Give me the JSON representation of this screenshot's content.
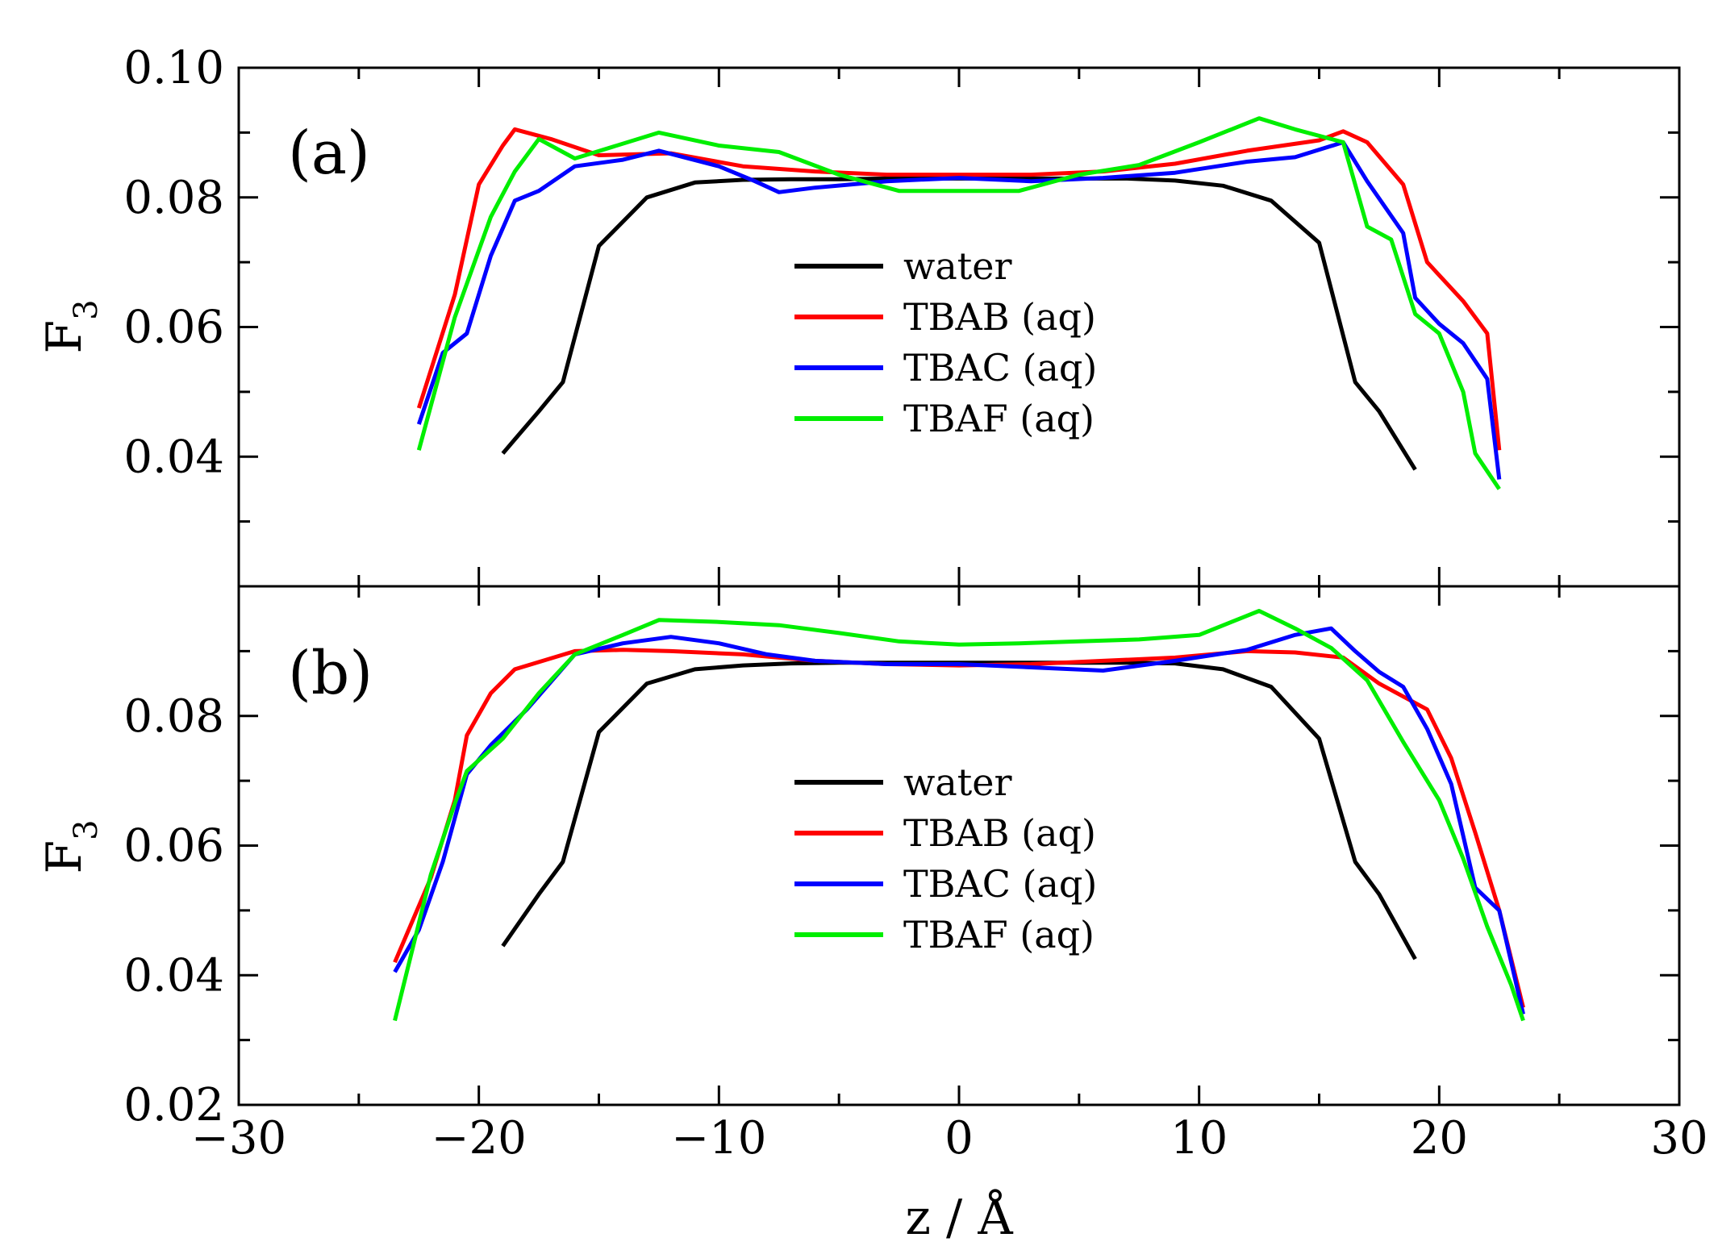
{
  "chart_data": [
    {
      "type": "line",
      "panel_label": "(a)",
      "ylabel": "F",
      "ylabel_sub": "3",
      "xlim": [
        -30,
        30
      ],
      "ylim": [
        0.02,
        0.1
      ],
      "y_ticks": [
        0.04,
        0.06,
        0.08,
        0.1
      ],
      "y_tick_labels": [
        "0.04",
        "0.06",
        "0.08",
        "0.10"
      ],
      "legend_position": "center",
      "series": [
        {
          "name": "water",
          "color": "#000000",
          "x": [
            -19,
            -17.5,
            -16.5,
            -15,
            -13,
            -11,
            -9,
            -7,
            -5,
            -3,
            -1,
            1,
            3,
            5,
            7,
            9,
            11,
            13,
            15,
            16.5,
            17.5,
            19
          ],
          "y": [
            0.0405,
            0.047,
            0.0515,
            0.0725,
            0.08,
            0.0823,
            0.0827,
            0.0828,
            0.0828,
            0.0829,
            0.0829,
            0.0829,
            0.0829,
            0.0829,
            0.0829,
            0.0826,
            0.0818,
            0.0795,
            0.073,
            0.0515,
            0.047,
            0.038
          ]
        },
        {
          "name": "TBAB (aq)",
          "color": "#ff0000",
          "x": [
            -22.5,
            -21,
            -20,
            -19,
            -18.5,
            -17,
            -15,
            -12,
            -9,
            -6,
            -3,
            0,
            3,
            6,
            9,
            12,
            15,
            16,
            17,
            18.5,
            19.5,
            21,
            22,
            22.5
          ],
          "y": [
            0.0475,
            0.065,
            0.082,
            0.088,
            0.0905,
            0.089,
            0.0865,
            0.0868,
            0.0848,
            0.084,
            0.0835,
            0.0835,
            0.0835,
            0.084,
            0.0852,
            0.0872,
            0.0888,
            0.0902,
            0.0885,
            0.082,
            0.07,
            0.064,
            0.059,
            0.041
          ]
        },
        {
          "name": "TBAC (aq)",
          "color": "#0000ff",
          "x": [
            -22.5,
            -21.5,
            -20.5,
            -19.5,
            -18.5,
            -17.5,
            -16,
            -14,
            -12.5,
            -10,
            -8.5,
            -7.5,
            -6,
            -3,
            0,
            3,
            6,
            9,
            12,
            14,
            16,
            17,
            18.5,
            19,
            20,
            21,
            22,
            22.5
          ],
          "y": [
            0.045,
            0.056,
            0.059,
            0.071,
            0.0795,
            0.081,
            0.0848,
            0.0858,
            0.0872,
            0.0848,
            0.0825,
            0.0808,
            0.0815,
            0.0825,
            0.083,
            0.0825,
            0.083,
            0.0838,
            0.0855,
            0.0862,
            0.0885,
            0.0825,
            0.0745,
            0.0645,
            0.0605,
            0.0575,
            0.052,
            0.0365
          ]
        },
        {
          "name": "TBAF (aq)",
          "color": "#00ee00",
          "x": [
            -22.5,
            -21,
            -19.5,
            -18.5,
            -17.5,
            -16,
            -12.5,
            -10,
            -7.5,
            -5,
            -2.5,
            0,
            2.5,
            5,
            7.5,
            10,
            12.5,
            14,
            16,
            17,
            18,
            19,
            20,
            21,
            21.5,
            22.5
          ],
          "y": [
            0.041,
            0.0615,
            0.077,
            0.084,
            0.089,
            0.086,
            0.09,
            0.088,
            0.087,
            0.0835,
            0.081,
            0.081,
            0.081,
            0.0835,
            0.085,
            0.0885,
            0.0922,
            0.0905,
            0.0885,
            0.0755,
            0.0735,
            0.062,
            0.059,
            0.05,
            0.0405,
            0.035
          ]
        }
      ]
    },
    {
      "type": "line",
      "panel_label": "(b)",
      "xlabel": "z / Å",
      "ylabel": "F",
      "ylabel_sub": "3",
      "xlim": [
        -30,
        30
      ],
      "ylim": [
        0.02,
        0.1
      ],
      "x_ticks": [
        -30,
        -20,
        -10,
        0,
        10,
        20,
        30
      ],
      "x_tick_labels": [
        "−30",
        "−20",
        "−10",
        "0",
        "10",
        "20",
        "30"
      ],
      "y_ticks": [
        0.02,
        0.04,
        0.06,
        0.08
      ],
      "y_tick_labels": [
        "0.02",
        "0.04",
        "0.06",
        "0.08"
      ],
      "legend_position": "center",
      "series": [
        {
          "name": "water",
          "color": "#000000",
          "x": [
            -19,
            -17.5,
            -16.5,
            -15,
            -13,
            -11,
            -9,
            -7,
            -5,
            -3,
            -1,
            1,
            3,
            5,
            7,
            9,
            11,
            13,
            15,
            16.5,
            17.5,
            19
          ],
          "y": [
            0.0445,
            0.0525,
            0.0575,
            0.0775,
            0.085,
            0.0872,
            0.0878,
            0.0881,
            0.0882,
            0.0882,
            0.0882,
            0.0882,
            0.0882,
            0.0882,
            0.0882,
            0.0881,
            0.0872,
            0.0845,
            0.0765,
            0.0575,
            0.0525,
            0.0425
          ]
        },
        {
          "name": "TBAB (aq)",
          "color": "#ff0000",
          "x": [
            -23.5,
            -22,
            -21,
            -20.5,
            -19.5,
            -18.5,
            -16,
            -14,
            -12,
            -9,
            -6,
            -3,
            0,
            3,
            6,
            9,
            12,
            14,
            16,
            17.5,
            19.5,
            20.5,
            21.5,
            22.5,
            23.5
          ],
          "y": [
            0.042,
            0.055,
            0.067,
            0.077,
            0.0835,
            0.0872,
            0.09,
            0.0902,
            0.09,
            0.0895,
            0.0885,
            0.088,
            0.0878,
            0.088,
            0.0885,
            0.089,
            0.09,
            0.0898,
            0.089,
            0.085,
            0.081,
            0.0735,
            0.062,
            0.05,
            0.035
          ]
        },
        {
          "name": "TBAC (aq)",
          "color": "#0000ff",
          "x": [
            -23.5,
            -22.5,
            -21.5,
            -20.5,
            -19.5,
            -18,
            -16,
            -14,
            -12,
            -10,
            -8,
            -6,
            -3,
            0,
            3,
            6,
            9,
            12,
            14,
            15.5,
            16.5,
            17.5,
            18.5,
            19.5,
            20.5,
            21.5,
            22.5,
            23.5
          ],
          "y": [
            0.0405,
            0.047,
            0.0575,
            0.071,
            0.0755,
            0.081,
            0.0895,
            0.0912,
            0.0922,
            0.0912,
            0.0895,
            0.0885,
            0.088,
            0.088,
            0.0875,
            0.087,
            0.0885,
            0.0902,
            0.0925,
            0.0935,
            0.09,
            0.0868,
            0.0845,
            0.078,
            0.0695,
            0.0535,
            0.05,
            0.034
          ]
        },
        {
          "name": "TBAF (aq)",
          "color": "#00ee00",
          "x": [
            -23.5,
            -22,
            -21,
            -20.5,
            -19,
            -17.5,
            -16,
            -14,
            -12.5,
            -10,
            -7.5,
            -5,
            -2.5,
            0,
            2.5,
            5,
            7.5,
            10,
            12.5,
            14,
            15.5,
            17,
            18.5,
            20,
            21,
            22,
            23,
            23.5
          ],
          "y": [
            0.033,
            0.0555,
            0.0665,
            0.0715,
            0.0765,
            0.0835,
            0.0895,
            0.0925,
            0.0948,
            0.0945,
            0.094,
            0.0928,
            0.0915,
            0.091,
            0.0912,
            0.0915,
            0.0918,
            0.0925,
            0.0962,
            0.0935,
            0.0905,
            0.0855,
            0.076,
            0.067,
            0.058,
            0.0475,
            0.0385,
            0.033
          ]
        }
      ]
    }
  ]
}
